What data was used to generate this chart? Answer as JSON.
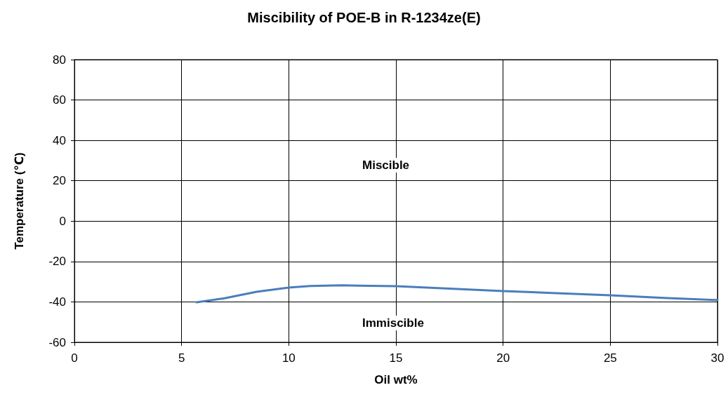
{
  "chart_data": {
    "type": "line",
    "title": "Miscibility of POE-B in R-1234ze(E)",
    "xlabel": "Oil wt%",
    "ylabel": "Temperature (℃)",
    "xlim": [
      0,
      30
    ],
    "xticks": [
      0,
      5,
      10,
      15,
      20,
      25,
      30
    ],
    "ylim": [
      -60,
      80
    ],
    "yticks": [
      -60,
      -40,
      -20,
      0,
      20,
      40,
      60,
      80
    ],
    "grid": true,
    "marker": "none",
    "line_style": "solid",
    "series": [
      {
        "color": "#4a7ebb",
        "x": [
          5.7,
          7,
          8.5,
          10,
          11,
          12.5,
          15,
          17.5,
          20,
          22.5,
          25,
          27.5,
          30
        ],
        "values": [
          -40.2,
          -38.2,
          -35.0,
          -32.9,
          -32.1,
          -31.8,
          -32.2,
          -33.4,
          -34.6,
          -35.7,
          -36.7,
          -38.0,
          -39.1
        ]
      }
    ],
    "annotations": [
      "Miscible",
      "Immiscible"
    ]
  }
}
